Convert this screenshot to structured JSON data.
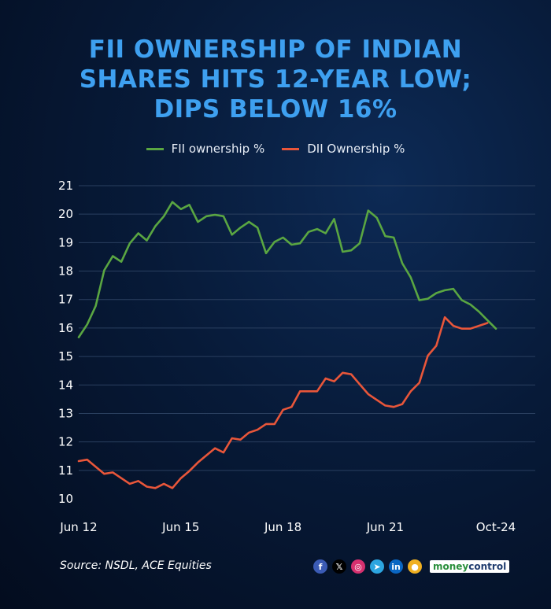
{
  "title_lines": [
    "FII OWNERSHIP OF INDIAN",
    "SHARES HITS 12-YEAR LOW;",
    "DIPS BELOW 16%"
  ],
  "source": "Source: NSDL, ACE Equities",
  "colors": {
    "fii": "#5aa642",
    "dii": "#e8563a",
    "title": "#3ea0f0",
    "grid": "#2a3f5f"
  },
  "socials": [
    {
      "icon": "facebook-icon",
      "glyph": "f",
      "color": "#3b5bb5"
    },
    {
      "icon": "x-icon",
      "glyph": "𝕏",
      "color": "#000000"
    },
    {
      "icon": "instagram-icon",
      "glyph": "◎",
      "color": "#d6306f"
    },
    {
      "icon": "telegram-icon",
      "glyph": "➤",
      "color": "#2ca5e0"
    },
    {
      "icon": "linkedin-icon",
      "glyph": "in",
      "color": "#0a66c2"
    },
    {
      "icon": "koo-icon",
      "glyph": "●",
      "color": "#f0b020"
    }
  ],
  "brand": {
    "money": "money",
    "control": "control"
  },
  "chart_data": {
    "type": "line",
    "title": "FII OWNERSHIP OF INDIAN SHARES HITS 12-YEAR LOW; DIPS BELOW 16%",
    "xlabel": "",
    "ylabel": "",
    "ylim": [
      10,
      21
    ],
    "yticks": [
      10,
      11,
      12,
      13,
      14,
      15,
      16,
      17,
      18,
      19,
      20,
      21
    ],
    "xlim": [
      2012.5,
      2024.75
    ],
    "xticks": [
      {
        "label": "Jun 12",
        "x": 2012.5
      },
      {
        "label": "Jun 15",
        "x": 2015.5
      },
      {
        "label": "Jun 18",
        "x": 2018.5
      },
      {
        "label": "Jun 21",
        "x": 2021.5
      },
      {
        "label": "Oct-24",
        "x": 2024.75
      }
    ],
    "grid": true,
    "legend": "top-center",
    "series": [
      {
        "name": "FII ownership %",
        "x": [
          2012.5,
          2012.75,
          2013.0,
          2013.25,
          2013.5,
          2013.75,
          2014.0,
          2014.25,
          2014.5,
          2014.75,
          2015.0,
          2015.25,
          2015.5,
          2015.75,
          2016.0,
          2016.25,
          2016.5,
          2016.75,
          2017.0,
          2017.25,
          2017.5,
          2017.75,
          2018.0,
          2018.25,
          2018.5,
          2018.75,
          2019.0,
          2019.25,
          2019.5,
          2019.75,
          2020.0,
          2020.25,
          2020.5,
          2020.75,
          2021.0,
          2021.25,
          2021.5,
          2021.75,
          2022.0,
          2022.25,
          2022.5,
          2022.75,
          2023.0,
          2023.25,
          2023.5,
          2023.75,
          2024.0,
          2024.25,
          2024.5,
          2024.75
        ],
        "values": [
          15.65,
          16.1,
          16.75,
          18.0,
          18.5,
          18.3,
          18.95,
          19.3,
          19.05,
          19.55,
          19.9,
          20.4,
          20.15,
          20.3,
          19.7,
          19.9,
          19.95,
          19.9,
          19.25,
          19.5,
          19.7,
          19.5,
          18.6,
          19.0,
          19.15,
          18.9,
          18.95,
          19.35,
          19.45,
          19.3,
          19.8,
          18.65,
          18.7,
          18.95,
          20.1,
          19.85,
          19.2,
          19.15,
          18.25,
          17.75,
          16.95,
          17.0,
          17.2,
          17.3,
          17.35,
          16.95,
          16.8,
          16.55,
          16.25,
          15.95
        ]
      },
      {
        "name": "DII Ownership %",
        "x": [
          2012.5,
          2012.75,
          2013.0,
          2013.25,
          2013.5,
          2013.75,
          2014.0,
          2014.25,
          2014.5,
          2014.75,
          2015.0,
          2015.25,
          2015.5,
          2015.75,
          2016.0,
          2016.25,
          2016.5,
          2016.75,
          2017.0,
          2017.25,
          2017.5,
          2017.75,
          2018.0,
          2018.25,
          2018.5,
          2018.75,
          2019.0,
          2019.25,
          2019.5,
          2019.75,
          2020.0,
          2020.25,
          2020.5,
          2020.75,
          2021.0,
          2021.25,
          2021.5,
          2021.75,
          2022.0,
          2022.25,
          2022.5,
          2022.75,
          2023.0,
          2023.25,
          2023.5,
          2023.75,
          2024.0,
          2024.25,
          2024.5
        ],
        "values": [
          11.3,
          11.35,
          11.1,
          10.85,
          10.9,
          10.7,
          10.5,
          10.6,
          10.4,
          10.35,
          10.5,
          10.35,
          10.7,
          10.95,
          11.25,
          11.5,
          11.75,
          11.6,
          12.1,
          12.05,
          12.3,
          12.4,
          12.6,
          12.6,
          13.1,
          13.2,
          13.75,
          13.75,
          13.75,
          14.2,
          14.1,
          14.4,
          14.35,
          14.0,
          13.65,
          13.45,
          13.25,
          13.2,
          13.3,
          13.75,
          14.05,
          15.0,
          15.35,
          16.35,
          16.05,
          15.95,
          15.95,
          16.05,
          16.15
        ]
      }
    ]
  }
}
